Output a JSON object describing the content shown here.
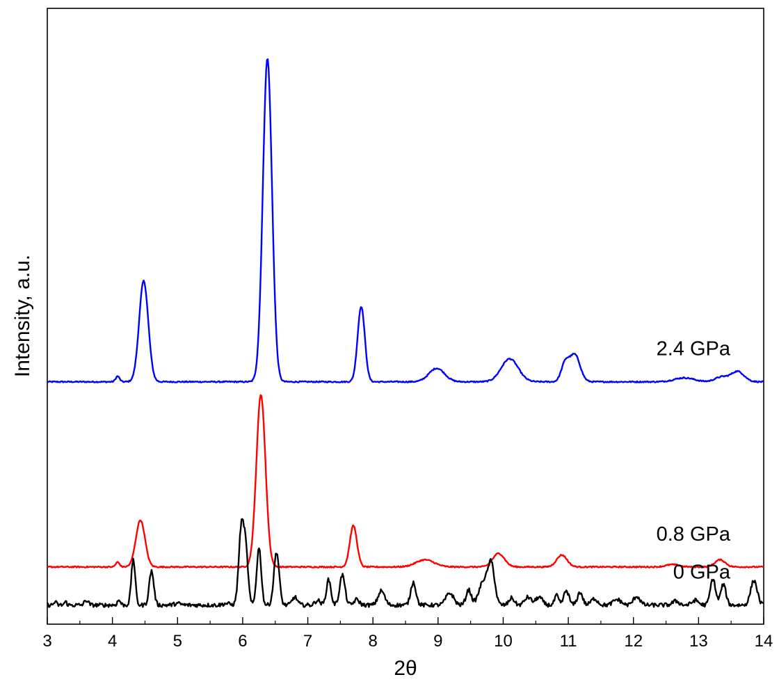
{
  "chart_data": {
    "type": "line",
    "title": "",
    "xlabel": "2θ",
    "ylabel": "Intensity, a.u.",
    "xlim": [
      3,
      14
    ],
    "xticks": [
      3,
      4,
      5,
      6,
      7,
      8,
      9,
      10,
      11,
      12,
      13,
      14
    ],
    "grid": false,
    "legend": "inline labels at right",
    "series": [
      {
        "name": "2.4 GPa",
        "color": "#0000ff",
        "baseline": 2.75,
        "peaks": [
          [
            4.08,
            0.07,
            0.03
          ],
          [
            4.48,
            1.27,
            0.07
          ],
          [
            6.38,
            4.07,
            0.07
          ],
          [
            7.82,
            0.95,
            0.055
          ],
          [
            8.98,
            0.17,
            0.12
          ],
          [
            10.1,
            0.29,
            0.13
          ],
          [
            10.95,
            0.22,
            0.06
          ],
          [
            11.1,
            0.34,
            0.08
          ],
          [
            12.78,
            0.05,
            0.15
          ],
          [
            13.35,
            0.06,
            0.1
          ],
          [
            13.6,
            0.13,
            0.1
          ]
        ]
      },
      {
        "name": "0.8 GPa",
        "color": "#ff0000",
        "baseline": 0.42,
        "peaks": [
          [
            4.08,
            0.06,
            0.03
          ],
          [
            4.43,
            0.59,
            0.07
          ],
          [
            6.28,
            2.17,
            0.07
          ],
          [
            7.7,
            0.52,
            0.055
          ],
          [
            8.8,
            0.09,
            0.14
          ],
          [
            9.93,
            0.17,
            0.09
          ],
          [
            10.9,
            0.15,
            0.08
          ],
          [
            12.6,
            0.03,
            0.1
          ],
          [
            13.33,
            0.09,
            0.08
          ]
        ]
      },
      {
        "name": "0 GPa",
        "color": "#000000",
        "baseline": -0.06,
        "peaks": [
          [
            3.12,
            0.04,
            0.02
          ],
          [
            3.28,
            0.04,
            0.02
          ],
          [
            3.6,
            0.06,
            0.03
          ],
          [
            4.1,
            0.06,
            0.025
          ],
          [
            4.32,
            0.58,
            0.03
          ],
          [
            4.6,
            0.43,
            0.035
          ],
          [
            5.0,
            0.02,
            0.05
          ],
          [
            5.75,
            0.02,
            0.05
          ],
          [
            5.98,
            0.97,
            0.04
          ],
          [
            6.05,
            0.6,
            0.035
          ],
          [
            6.25,
            0.72,
            0.035
          ],
          [
            6.52,
            0.67,
            0.04
          ],
          [
            6.8,
            0.1,
            0.04
          ],
          [
            7.15,
            0.06,
            0.04
          ],
          [
            7.32,
            0.32,
            0.035
          ],
          [
            7.53,
            0.38,
            0.04
          ],
          [
            7.75,
            0.07,
            0.04
          ],
          [
            8.13,
            0.18,
            0.05
          ],
          [
            8.62,
            0.29,
            0.04
          ],
          [
            9.18,
            0.15,
            0.06
          ],
          [
            9.47,
            0.19,
            0.04
          ],
          [
            9.7,
            0.3,
            0.07
          ],
          [
            9.82,
            0.48,
            0.05
          ],
          [
            10.13,
            0.09,
            0.04
          ],
          [
            10.38,
            0.1,
            0.05
          ],
          [
            10.55,
            0.1,
            0.05
          ],
          [
            10.82,
            0.12,
            0.03
          ],
          [
            10.97,
            0.18,
            0.04
          ],
          [
            11.18,
            0.16,
            0.04
          ],
          [
            11.4,
            0.08,
            0.05
          ],
          [
            11.75,
            0.07,
            0.06
          ],
          [
            12.05,
            0.11,
            0.05
          ],
          [
            12.65,
            0.05,
            0.05
          ],
          [
            12.95,
            0.06,
            0.05
          ],
          [
            13.22,
            0.33,
            0.04
          ],
          [
            13.38,
            0.26,
            0.04
          ],
          [
            13.85,
            0.31,
            0.05
          ]
        ]
      }
    ],
    "ylim": [
      -0.3,
      7.45
    ]
  }
}
